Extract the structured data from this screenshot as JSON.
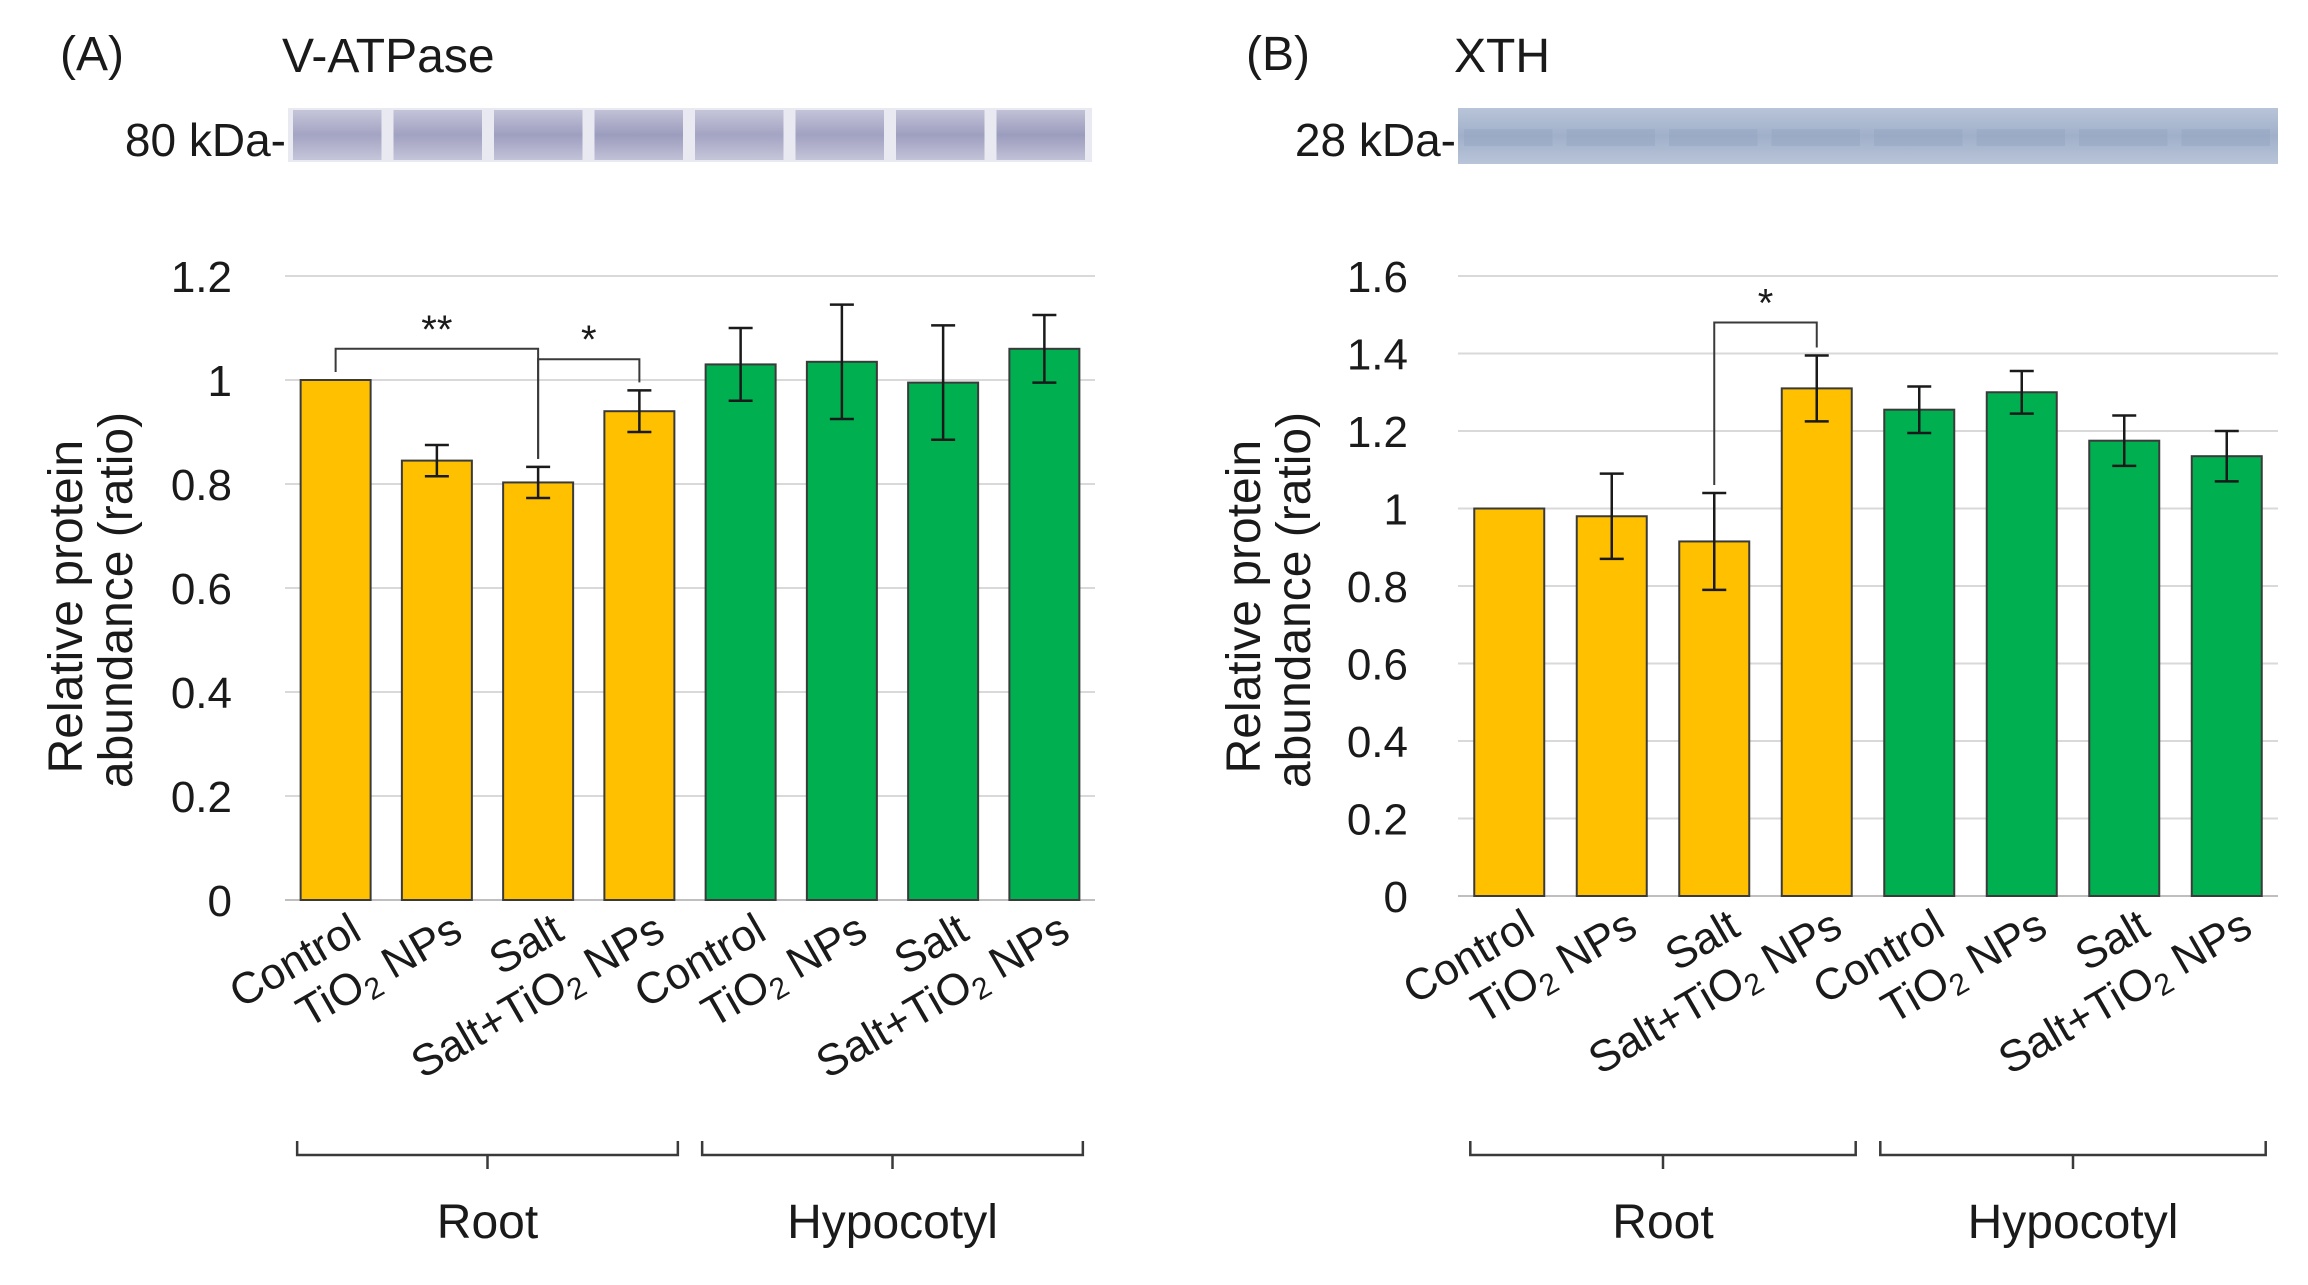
{
  "colors": {
    "root_bar": "#FFC000",
    "hypocotyl_bar": "#00B050",
    "grid": "#D9D9D9",
    "axis": "#1a1a1a",
    "blot_a": "#8f8fb5",
    "blot_b": "#a3b2cc"
  },
  "chart_data": [
    {
      "type": "bar",
      "panel_label": "(A)",
      "title": "V-ATPase",
      "blot_label": "80 kDa-",
      "ylabel": "Relative protein abundance (ratio)",
      "ylim": [
        0,
        1.2
      ],
      "yticks": [
        0,
        0.2,
        0.4,
        0.6,
        0.8,
        1,
        1.2
      ],
      "ytick_labels": [
        "0",
        "0.2",
        "0.4",
        "0.6",
        "0.8",
        "1",
        "1.2"
      ],
      "categories": [
        "Control",
        "TiO2 NPs",
        "Salt",
        "Salt+TiO2 NPs",
        "Control",
        "TiO2 NPs",
        "Salt",
        "Salt+TiO2 NPs"
      ],
      "values": [
        1.0,
        0.845,
        0.803,
        0.94,
        1.03,
        1.035,
        0.995,
        1.06
      ],
      "errors": [
        0,
        0.03,
        0.03,
        0.04,
        0.07,
        0.11,
        0.11,
        0.065
      ],
      "groups": [
        {
          "label": "Root",
          "start": 0,
          "end": 3,
          "color_key": "root_bar"
        },
        {
          "label": "Hypocotyl",
          "start": 4,
          "end": 7,
          "color_key": "hypocotyl_bar"
        }
      ],
      "significance": [
        {
          "from": 0,
          "to": 2,
          "label": "**",
          "bracket_y": 1.06
        },
        {
          "from": 2,
          "to": 3,
          "label": "*",
          "bracket_y": 1.04
        }
      ],
      "grid": true
    },
    {
      "type": "bar",
      "panel_label": "(B)",
      "title": "XTH",
      "blot_label": "28 kDa-",
      "ylabel": "Relative protein abundance (ratio)",
      "ylim": [
        0,
        1.6
      ],
      "yticks": [
        0,
        0.2,
        0.4,
        0.6,
        0.8,
        1,
        1.2,
        1.4,
        1.6
      ],
      "ytick_labels": [
        "0",
        "0.2",
        "0.4",
        "0.6",
        "0.8",
        "1",
        "1.2",
        "1.4",
        "1.6"
      ],
      "categories": [
        "Control",
        "TiO2 NPs",
        "Salt",
        "Salt+TiO2 NPs",
        "Control",
        "TiO2 NPs",
        "Salt",
        "Salt+TiO2 NPs"
      ],
      "values": [
        1.0,
        0.98,
        0.915,
        1.31,
        1.255,
        1.3,
        1.175,
        1.135
      ],
      "errors": [
        0,
        0.11,
        0.125,
        0.085,
        0.06,
        0.055,
        0.065,
        0.065
      ],
      "groups": [
        {
          "label": "Root",
          "start": 0,
          "end": 3,
          "color_key": "root_bar"
        },
        {
          "label": "Hypocotyl",
          "start": 4,
          "end": 7,
          "color_key": "hypocotyl_bar"
        }
      ],
      "significance": [
        {
          "from": 2,
          "to": 3,
          "label": "*",
          "bracket_y": 1.48
        }
      ],
      "grid": true
    }
  ]
}
